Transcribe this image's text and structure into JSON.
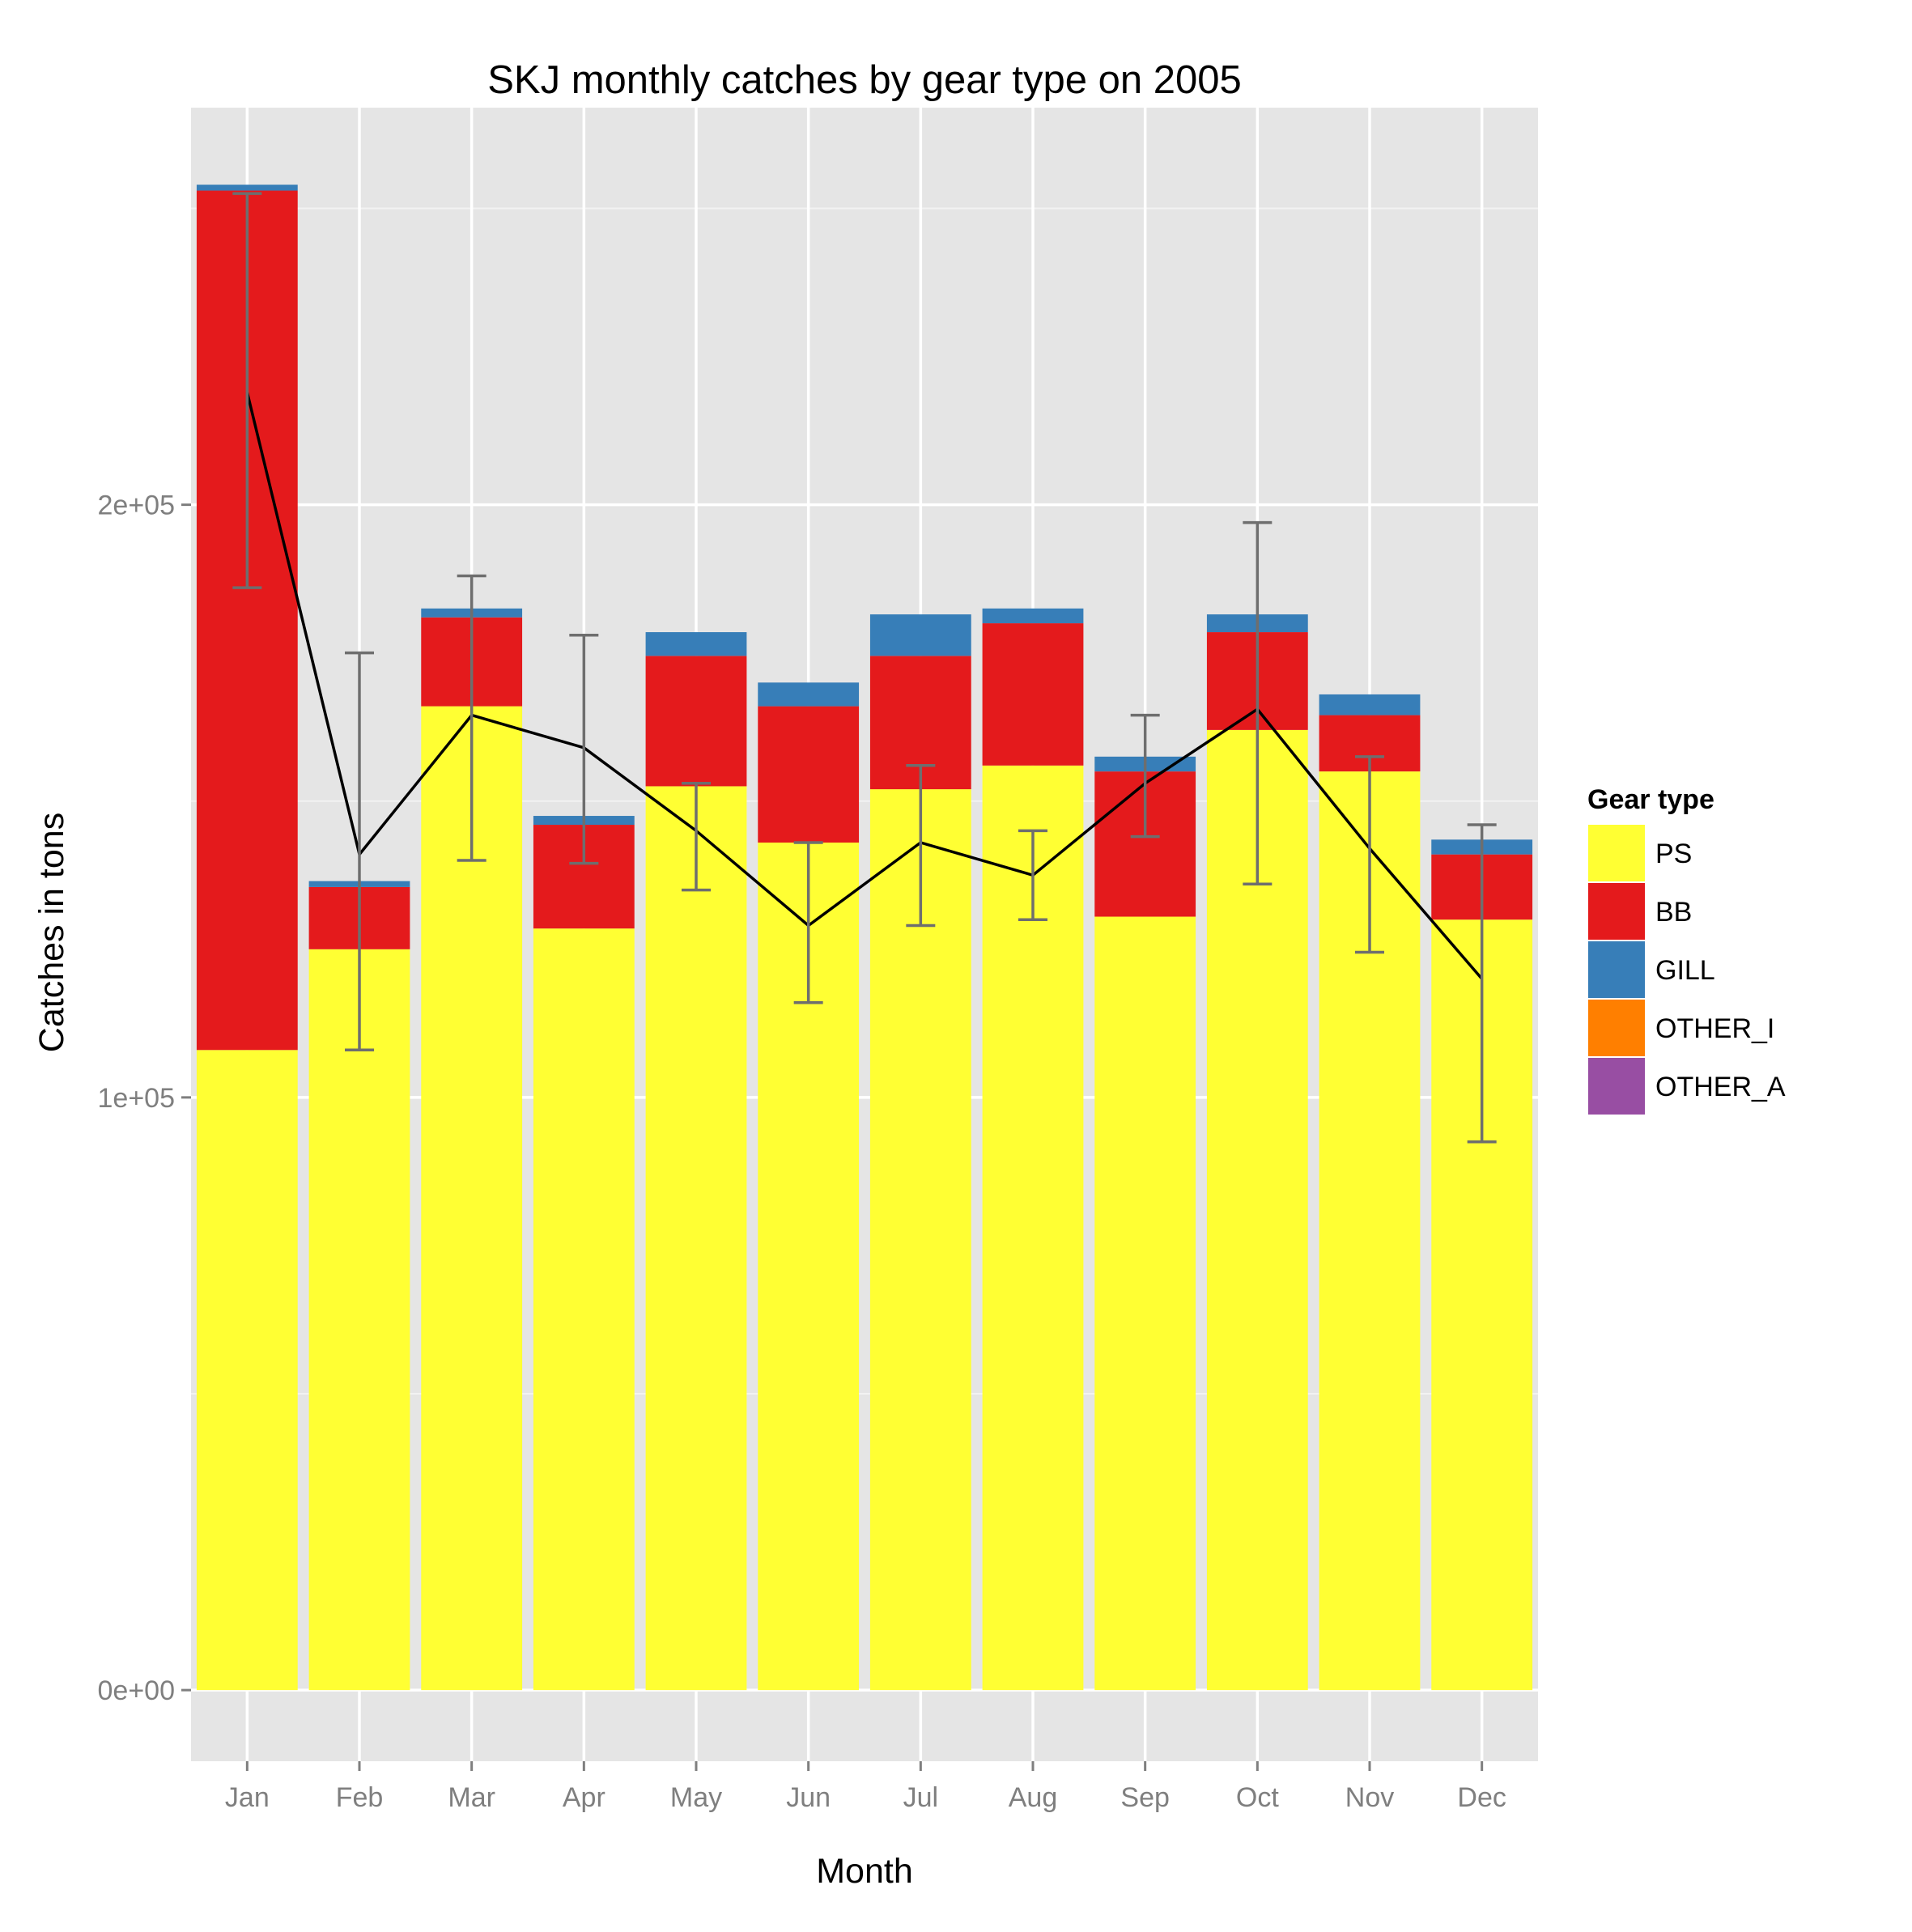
{
  "chart_data": {
    "type": "bar",
    "stacked": true,
    "title": "SKJ monthly catches by gear type on 2005",
    "xlabel": "Month",
    "ylabel": "Catches in tons",
    "ylim": [
      -12000,
      267000
    ],
    "yticks": [
      0,
      100000,
      200000
    ],
    "ytick_labels": [
      "0e+00",
      "1e+05",
      "2e+05"
    ],
    "grid": true,
    "legend": {
      "title": "Gear type",
      "placement": "right"
    },
    "categories": [
      "Jan",
      "Feb",
      "Mar",
      "Apr",
      "May",
      "Jun",
      "Jul",
      "Aug",
      "Sep",
      "Oct",
      "Nov",
      "Dec"
    ],
    "series": [
      {
        "name": "PS",
        "color": "#ffff33",
        "values": [
          108000,
          125000,
          166000,
          128500,
          152500,
          143000,
          152000,
          156000,
          130500,
          162000,
          155000,
          130000
        ]
      },
      {
        "name": "BB",
        "color": "#e41a1c",
        "values": [
          145000,
          10500,
          15000,
          17500,
          22000,
          23000,
          22500,
          24000,
          24500,
          16500,
          9500,
          11000
        ]
      },
      {
        "name": "GILL",
        "color": "#377eb8",
        "values": [
          1000,
          1000,
          1500,
          1500,
          4000,
          4000,
          7000,
          2500,
          2500,
          3000,
          3500,
          2500
        ]
      },
      {
        "name": "OTHER_I",
        "color": "#ff7f00",
        "values": [
          0,
          0,
          0,
          0,
          0,
          0,
          0,
          0,
          0,
          0,
          0,
          0
        ]
      },
      {
        "name": "OTHER_A",
        "color": "#984ea3",
        "values": [
          0,
          0,
          0,
          0,
          0,
          0,
          0,
          0,
          0,
          0,
          0,
          0
        ]
      }
    ],
    "mean_line": {
      "color": "#000000",
      "values": [
        219000,
        141000,
        164500,
        159000,
        145000,
        129000,
        143000,
        137500,
        153000,
        165500,
        142000,
        120000
      ]
    },
    "error_bars": {
      "color": "#6e6e6e",
      "lower": [
        186000,
        108000,
        140000,
        139500,
        135000,
        116000,
        129000,
        130000,
        144000,
        136000,
        124500,
        92500
      ],
      "upper": [
        252500,
        175000,
        188000,
        178000,
        153000,
        143000,
        156000,
        145000,
        164500,
        197000,
        157500,
        146000
      ]
    }
  }
}
